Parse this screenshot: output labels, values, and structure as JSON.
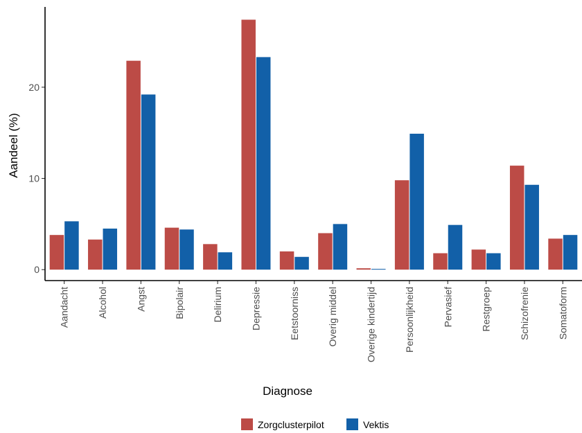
{
  "chart_data": {
    "type": "bar",
    "xlabel": "Diagnose",
    "ylabel": "Aandeel (%)",
    "ylim": [
      -1.2,
      28.8
    ],
    "yticks": [
      0,
      10,
      20
    ],
    "grid": false,
    "legend_position": "bottom",
    "categories": [
      "Aandacht",
      "Alcohol",
      "Angst",
      "Bipolair",
      "Delirium",
      "Depressie",
      "Eetstoorniss",
      "Overig middel",
      "Overige kindertijd",
      "Persoonlijkheid",
      "Pervasief",
      "Restgroep",
      "Schizofrenie",
      "Somatoform"
    ],
    "series": [
      {
        "name": "Zorgclusterpilot",
        "color": "#bc4b46",
        "values": [
          3.8,
          3.3,
          22.9,
          4.6,
          2.8,
          27.4,
          2.0,
          4.0,
          0.15,
          9.8,
          1.8,
          2.2,
          11.4,
          3.4
        ]
      },
      {
        "name": "Vektis",
        "color": "#1260a8",
        "values": [
          5.3,
          4.5,
          19.2,
          4.4,
          1.9,
          23.3,
          1.4,
          5.0,
          0.08,
          14.9,
          4.9,
          1.8,
          9.3,
          3.8
        ]
      }
    ]
  }
}
